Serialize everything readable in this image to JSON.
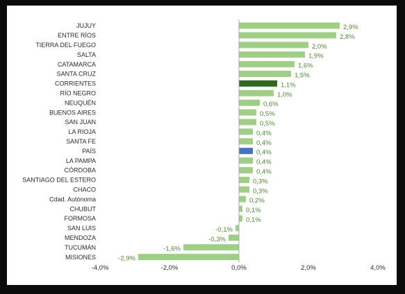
{
  "chart_data": {
    "type": "bar",
    "orientation": "horizontal",
    "title": "",
    "xlabel": "",
    "ylabel": "",
    "xlim": [
      -4.0,
      4.0
    ],
    "x_ticks": [
      -4.0,
      -2.0,
      0.0,
      2.0,
      4.0
    ],
    "x_tick_labels": [
      "-4,0%",
      "-2,0%",
      "0,0%",
      "2,0%",
      "4,0%"
    ],
    "grid": false,
    "legend": "none",
    "categories": [
      "JUJUY",
      "ENTRE RÍOS",
      "TIERRA DEL FUEGO",
      "SALTA",
      "CATAMARCA",
      "SANTA CRUZ",
      "CORRIENTES",
      "RÍO NEGRO",
      "NEUQUÉN",
      "BUENOS AIRES",
      "SAN JUAN",
      "LA RIOJA",
      "SANTA FE",
      "PAÍS",
      "LA PAMPA",
      "CÓRDOBA",
      "SANTIAGO DEL ESTERO",
      "CHACO",
      "Cdad. Autónoma",
      "CHUBUT",
      "FORMOSA",
      "SAN LUIS",
      "MENDOZA",
      "TUCUMÁN",
      "MISIONES"
    ],
    "values": [
      2.9,
      2.8,
      2.0,
      1.9,
      1.6,
      1.5,
      1.1,
      1.0,
      0.6,
      0.5,
      0.5,
      0.4,
      0.4,
      0.4,
      0.4,
      0.4,
      0.3,
      0.3,
      0.2,
      0.1,
      0.1,
      -0.1,
      -0.3,
      -1.6,
      -2.9
    ],
    "value_labels": [
      "2,9%",
      "2,8%",
      "2,0%",
      "1,9%",
      "1,6%",
      "1,5%",
      "1,1%",
      "1,0%",
      "0,6%",
      "0,5%",
      "0,5%",
      "0,4%",
      "0,4%",
      "0,4%",
      "0,4%",
      "0,4%",
      "0,3%",
      "0,3%",
      "0,2%",
      "0,1%",
      "0,1%",
      "-0,1%",
      "-0,3%",
      "-1,6%",
      "-2,9%"
    ],
    "highlights": {
      "CORRIENTES": "#2e6b1f",
      "PAÍS": "#4472c4"
    },
    "colors": {
      "bar": "#9ecf85",
      "value_label": "#4e8a2e",
      "category_label": "#2b2b2b",
      "axis": "#a8a8a8",
      "background": "#ffffff",
      "frame": "#0b0b0b"
    }
  }
}
